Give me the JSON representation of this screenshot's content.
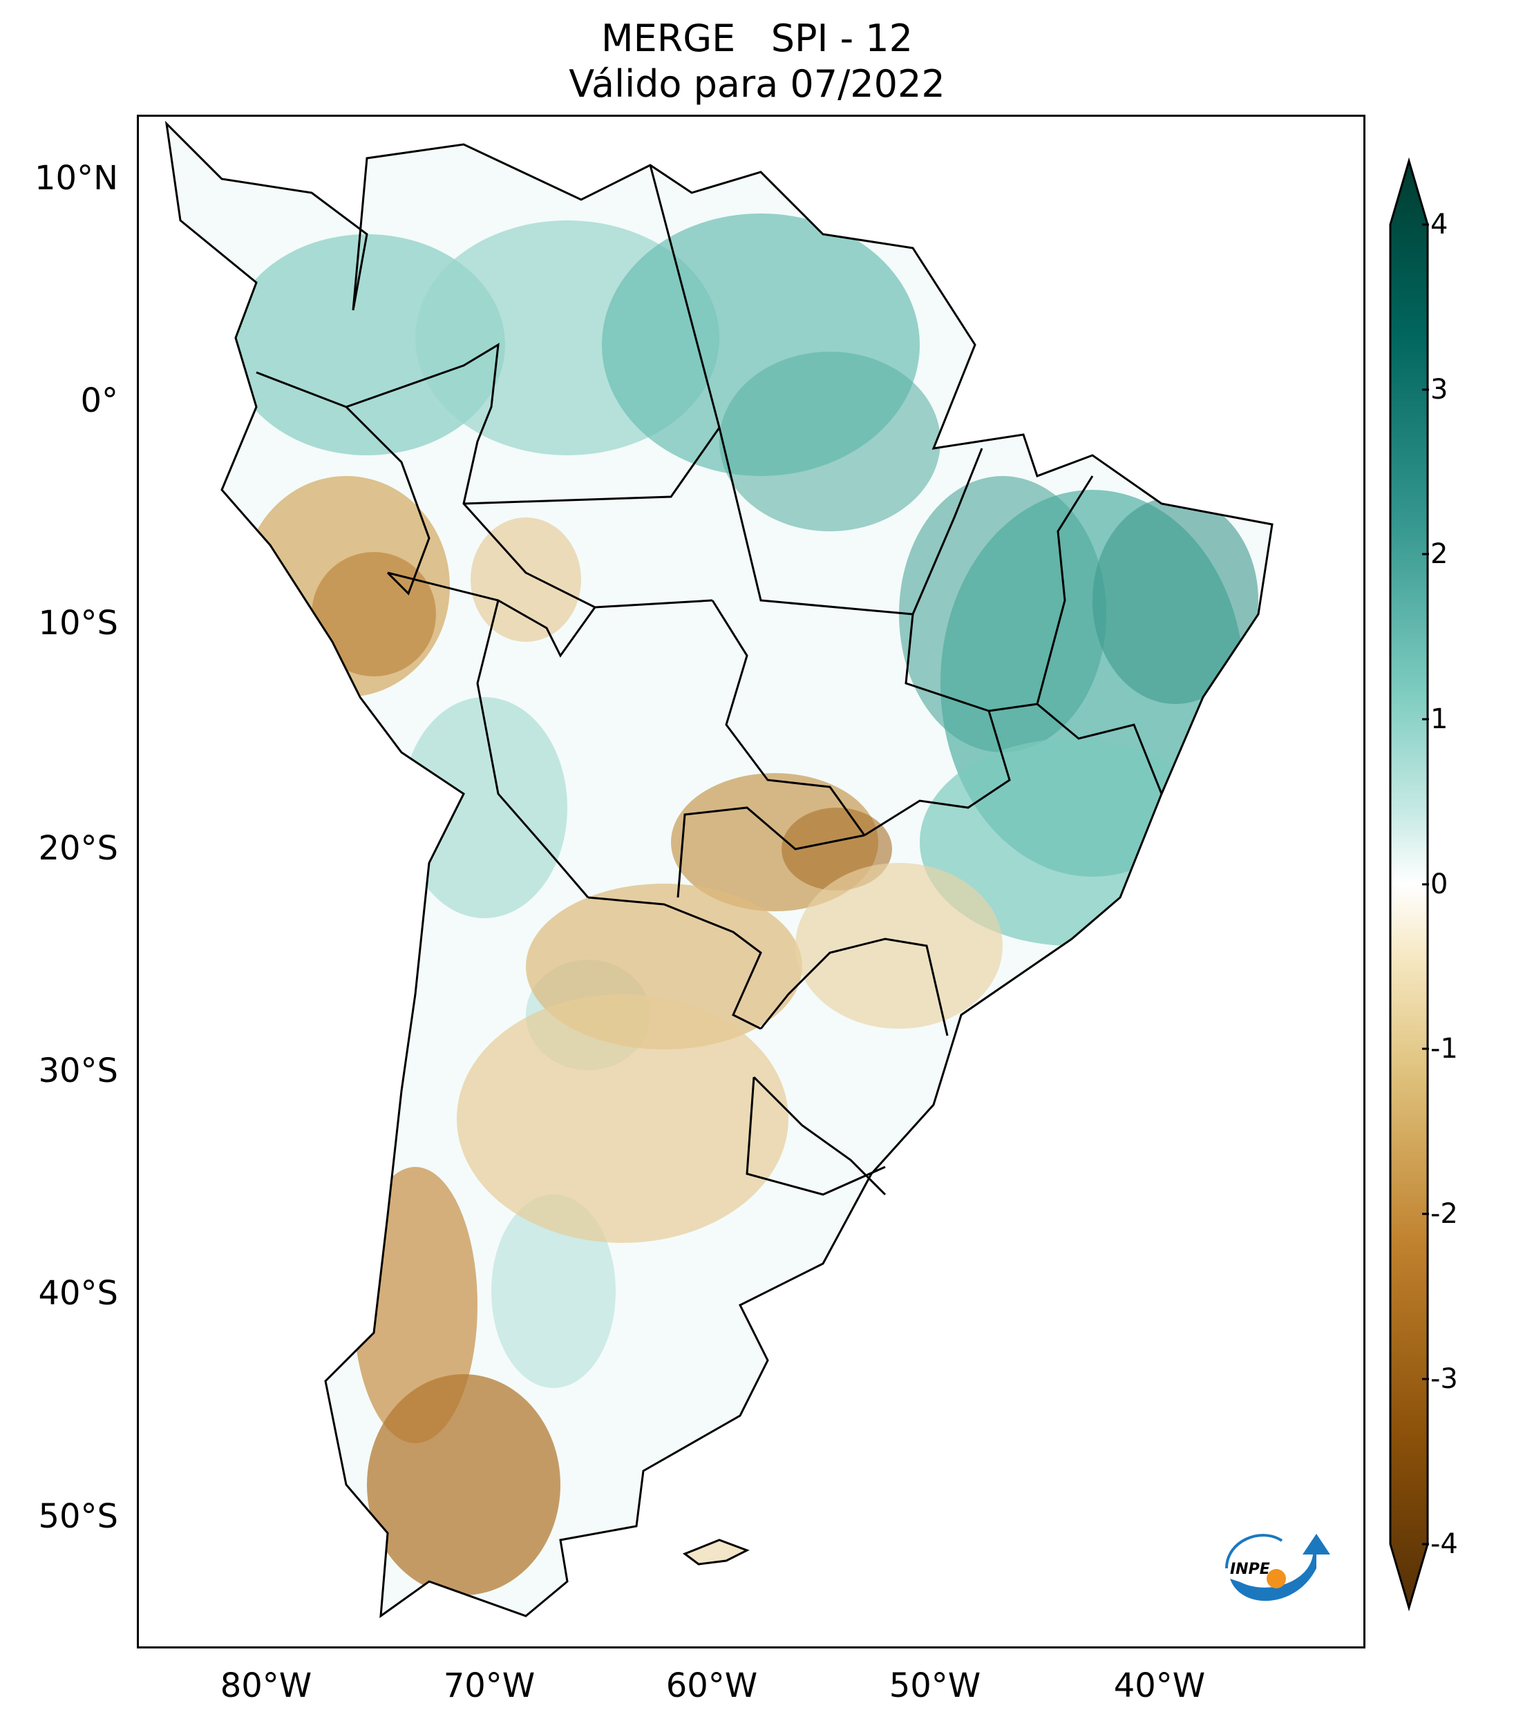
{
  "title": {
    "line1": "MERGE   SPI - 12",
    "line2": "Válido para 07/2022"
  },
  "axes": {
    "lat_labels": [
      {
        "label": "10°N",
        "value": 10
      },
      {
        "label": "0°",
        "value": 0
      },
      {
        "label": "10°S",
        "value": -10
      },
      {
        "label": "20°S",
        "value": -20
      },
      {
        "label": "30°S",
        "value": -30
      },
      {
        "label": "40°S",
        "value": -40
      },
      {
        "label": "50°S",
        "value": -50
      }
    ],
    "lon_labels": [
      {
        "label": "80°W",
        "value": -80
      },
      {
        "label": "70°W",
        "value": -70
      },
      {
        "label": "60°W",
        "value": -60
      },
      {
        "label": "50°W",
        "value": -50
      },
      {
        "label": "40°W",
        "value": -40
      }
    ],
    "extent": {
      "lon_min": -85,
      "lon_max": -30,
      "lat_min": -56,
      "lat_max": 12.5
    }
  },
  "colorbar": {
    "ticks": [
      "4",
      "3",
      "2",
      "1",
      "0",
      "-1",
      "-2",
      "-3",
      "-4"
    ],
    "range": [
      -4,
      4
    ],
    "colors": [
      "#543005",
      "#8c510a",
      "#bf812d",
      "#dfc27d",
      "#f6e8c3",
      "#ffffff",
      "#c7eae5",
      "#80cdc1",
      "#35978f",
      "#01665e",
      "#003c30"
    ]
  },
  "logo": {
    "text": "INPE"
  },
  "colors": {
    "wet": "#5fb9ad",
    "wet_strong": "#1f7f73",
    "dry": "#d9b779",
    "dry_strong": "#a8712b",
    "border": "#000000"
  }
}
